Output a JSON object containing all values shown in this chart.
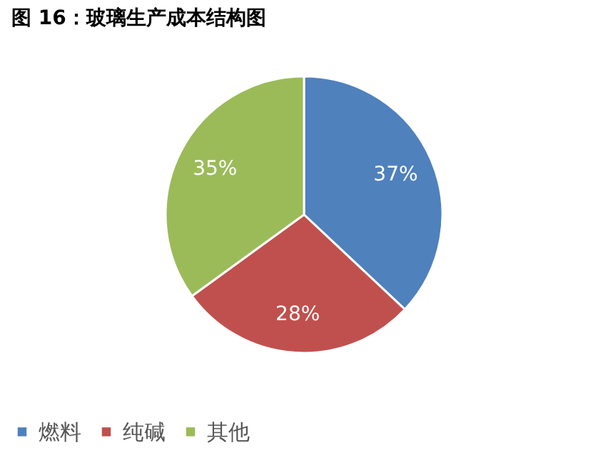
{
  "chart_data": {
    "type": "pie",
    "title": "图 16：玻璃生产成本结构图",
    "categories": [
      "燃料",
      "纯碱",
      "其他"
    ],
    "values": [
      37,
      28,
      35
    ],
    "colors": [
      "#4f81bd",
      "#c0504d",
      "#9bbb59"
    ],
    "value_labels": [
      "37%",
      "28%",
      "35%"
    ],
    "legend": "bottom"
  }
}
